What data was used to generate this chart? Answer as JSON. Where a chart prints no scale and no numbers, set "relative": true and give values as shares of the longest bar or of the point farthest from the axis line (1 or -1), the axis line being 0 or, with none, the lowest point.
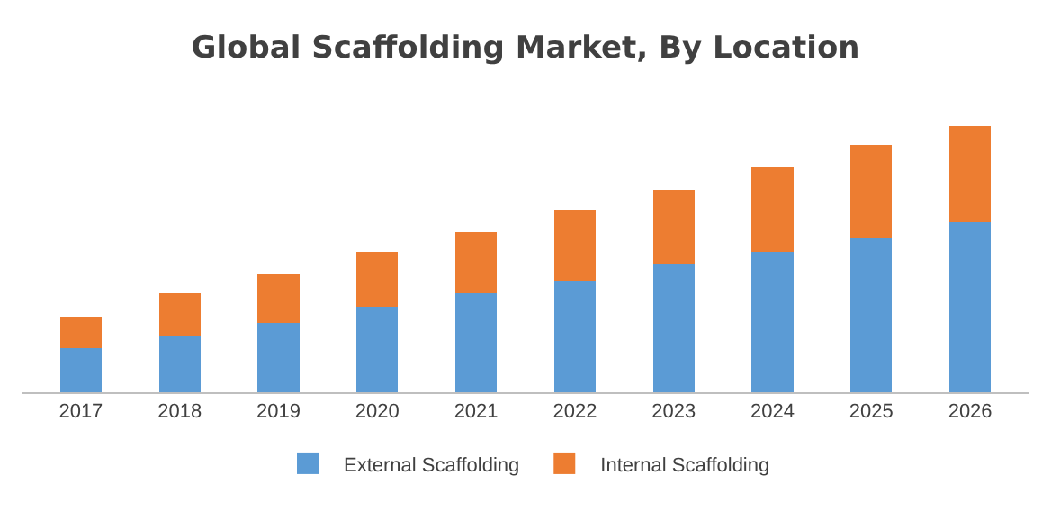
{
  "chart_data": {
    "type": "bar",
    "title": "Global Scaffolding Market, By Location",
    "relative": true,
    "stacked": true,
    "legend": "bottom",
    "categories": [
      "2017",
      "2018",
      "2019",
      "2020",
      "2021",
      "2022",
      "2023",
      "2024",
      "2025",
      "2026"
    ],
    "series": [
      {
        "name": "External Scaffolding",
        "color": "#5b9bd5",
        "values": [
          0.164,
          0.212,
          0.261,
          0.321,
          0.37,
          0.418,
          0.479,
          0.527,
          0.576,
          0.636
        ]
      },
      {
        "name": "Internal Scaffolding",
        "color": "#ed7d31",
        "values": [
          0.121,
          0.158,
          0.182,
          0.206,
          0.23,
          0.267,
          0.279,
          0.315,
          0.352,
          0.364
        ]
      }
    ]
  }
}
